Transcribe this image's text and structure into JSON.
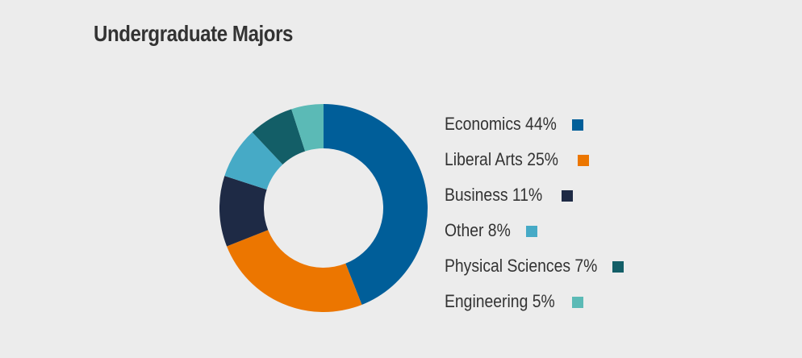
{
  "chart_data": {
    "type": "pie",
    "title": "Undergraduate Majors",
    "slices": [
      {
        "label": "Economics",
        "value": 44,
        "display": "Economics 44%",
        "color": "#005e99"
      },
      {
        "label": "Liberal Arts",
        "value": 25,
        "display": "Liberal Arts 25%",
        "color": "#ec7600"
      },
      {
        "label": "Business",
        "value": 11,
        "display": "Business 11%",
        "color": "#1e2a45"
      },
      {
        "label": "Other",
        "value": 8,
        "display": "Other 8%",
        "color": "#46aac6"
      },
      {
        "label": "Physical Sciences",
        "value": 7,
        "display": "Physical Sciences 7%",
        "color": "#135e67"
      },
      {
        "label": "Engineering",
        "value": 5,
        "display": "Engineering 5%",
        "color": "#5bbab6"
      }
    ],
    "legend_position": "right",
    "donut": true
  }
}
